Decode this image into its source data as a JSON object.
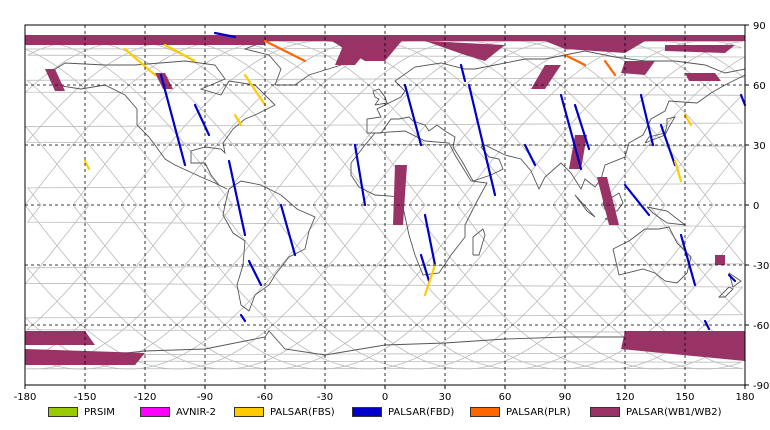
{
  "map": {
    "x_ticks": [
      "-180",
      "-150",
      "-120",
      "-90",
      "-60",
      "-30",
      "0",
      "30",
      "60",
      "90",
      "120",
      "150",
      "180"
    ],
    "y_ticks": [
      "90",
      "60",
      "30",
      "0",
      "-30",
      "-60",
      "-90"
    ]
  },
  "legend": [
    {
      "label": "PRSIM",
      "color": "#99cc00"
    },
    {
      "label": "AVNIR-2",
      "color": "#ff00ff"
    },
    {
      "label": "PALSAR(FBS)",
      "color": "#ffcc00"
    },
    {
      "label": "PALSAR(FBD)",
      "color": "#0000cc"
    },
    {
      "label": "PALSAR(PLR)",
      "color": "#ff6600"
    },
    {
      "label": "PALSAR(WB1/WB2)",
      "color": "#993366"
    }
  ],
  "colors": {
    "coastline": "#555555",
    "orbit": "#bbbbbb",
    "grid": "#000000"
  }
}
